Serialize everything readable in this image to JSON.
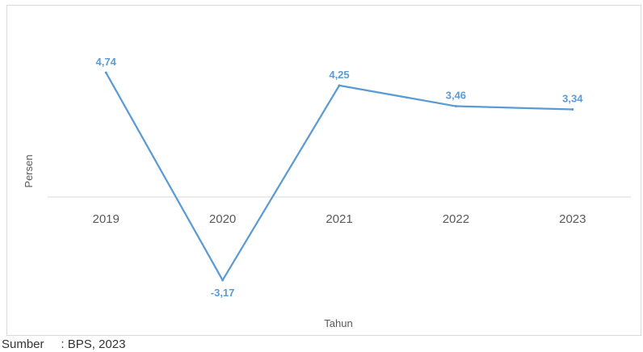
{
  "chart_data": {
    "type": "line",
    "categories": [
      "2019",
      "2020",
      "2021",
      "2022",
      "2023"
    ],
    "series": [
      {
        "values": [
          4.74,
          -3.17,
          4.25,
          3.46,
          3.34
        ],
        "labels": [
          "4,74",
          "-3,17",
          "4,25",
          "3,46",
          "3,34"
        ]
      }
    ],
    "xlabel": "Tahun",
    "ylabel": "Persen",
    "ylim": [
      -4,
      6
    ],
    "grid": false,
    "legend": "none",
    "colors": {
      "line": "#5b9bd5",
      "axis": "#d9d9d9",
      "text": "#595959"
    }
  },
  "footer": {
    "source": "Sumber     : BPS, 2023"
  }
}
